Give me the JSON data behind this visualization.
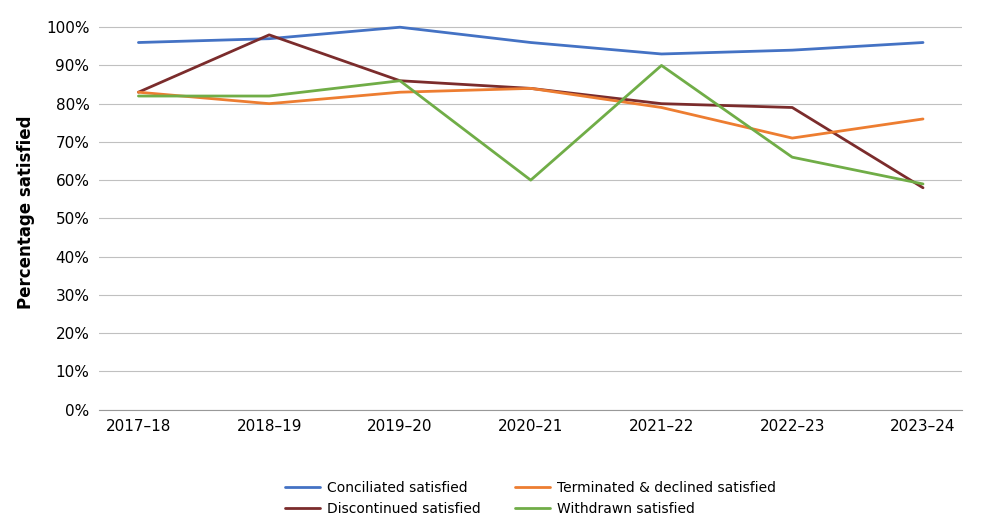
{
  "x_labels": [
    "2017–18",
    "2018–19",
    "2019–20",
    "2020–21",
    "2021–22",
    "2022–23",
    "2023–24"
  ],
  "series_order": [
    "Conciliated satisfied",
    "Discontinued satisfied",
    "Terminated & declined satisfied",
    "Withdrawn satisfied"
  ],
  "series": {
    "Conciliated satisfied": {
      "values": [
        96,
        97,
        100,
        96,
        93,
        94,
        96
      ],
      "color": "#4472C4",
      "linewidth": 2.0
    },
    "Discontinued satisfied": {
      "values": [
        83,
        98,
        86,
        84,
        80,
        79,
        58
      ],
      "color": "#7B2C2C",
      "linewidth": 2.0
    },
    "Terminated & declined satisfied": {
      "values": [
        83,
        80,
        83,
        84,
        79,
        71,
        76
      ],
      "color": "#ED7D31",
      "linewidth": 2.0
    },
    "Withdrawn satisfied": {
      "values": [
        82,
        82,
        86,
        60,
        90,
        66,
        59
      ],
      "color": "#70AD47",
      "linewidth": 2.0
    }
  },
  "ylabel": "Percentage satisfied",
  "ylim": [
    0,
    103
  ],
  "yticks": [
    0,
    10,
    20,
    30,
    40,
    50,
    60,
    70,
    80,
    90,
    100
  ],
  "background_color": "#ffffff",
  "grid_color": "#c0c0c0",
  "legend_fontsize": 10,
  "axis_fontsize": 11,
  "ylabel_fontsize": 12
}
